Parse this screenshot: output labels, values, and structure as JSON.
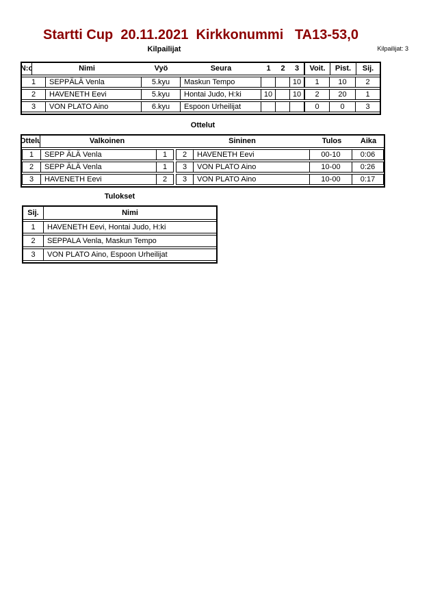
{
  "page": {
    "title": "Startti Cup  20.11.2021  Kirkkonummi   TA13-53,0",
    "title_color": "#8b0000"
  },
  "competitors": {
    "section_title": "Kilpailijat",
    "count_label": "Kilpailijat: 3",
    "headers": {
      "no": "N:o",
      "name": "Nimi",
      "belt": "Vyö",
      "club": "Seura",
      "m1": "1",
      "m2": "2",
      "m3": "3",
      "wins": "Voit.",
      "points": "Pist.",
      "place": "Sij."
    },
    "rows": [
      {
        "no": "1",
        "name": "SEPPÄLÄ Venla",
        "belt": "5.kyu",
        "club": "Maskun Tempo",
        "m1": "",
        "m2": "",
        "m3": "10",
        "wins": "1",
        "points": "10",
        "place": "2"
      },
      {
        "no": "2",
        "name": "HAVENETH Eevi",
        "belt": "5.kyu",
        "club": "Hontai Judo, H:ki",
        "m1": "10",
        "m2": "",
        "m3": "10",
        "wins": "2",
        "points": "20",
        "place": "1"
      },
      {
        "no": "3",
        "name": "VON PLATO Aino",
        "belt": "6.kyu",
        "club": "Espoon Urheilijat",
        "m1": "",
        "m2": "",
        "m3": "",
        "wins": "0",
        "points": "0",
        "place": "3"
      }
    ]
  },
  "matches": {
    "section_title": "Ottelut",
    "headers": {
      "match": "Ottelu",
      "white": "Valkoinen",
      "blue": "Sininen",
      "result": "Tulos",
      "time": "Aika"
    },
    "rows": [
      {
        "match": "1",
        "white": "SEPP ÄLÄ Venla",
        "white_no": "1",
        "blue_no": "2",
        "blue": "HAVENETH Eevi",
        "result": "00-10",
        "time": "0:06"
      },
      {
        "match": "2",
        "white": "SEPP ÄLÄ Venla",
        "white_no": "1",
        "blue_no": "3",
        "blue": "VON PLATO Aino",
        "result": "10-00",
        "time": "0:26"
      },
      {
        "match": "3",
        "white": "HAVENETH Eevi",
        "white_no": "2",
        "blue_no": "3",
        "blue": "VON PLATO Aino",
        "result": "10-00",
        "time": "0:17"
      }
    ]
  },
  "results": {
    "section_title": "Tulokset",
    "headers": {
      "place": "Sij.",
      "name": "Nimi"
    },
    "rows": [
      {
        "place": "1",
        "name": "HAVENETH Eevi, Hontai Judo, H:ki"
      },
      {
        "place": "2",
        "name": "SEPPALA Venla, Maskun Tempo"
      },
      {
        "place": "3",
        "name": "VON PLATO Aino, Espoon Urheilijat"
      }
    ]
  }
}
